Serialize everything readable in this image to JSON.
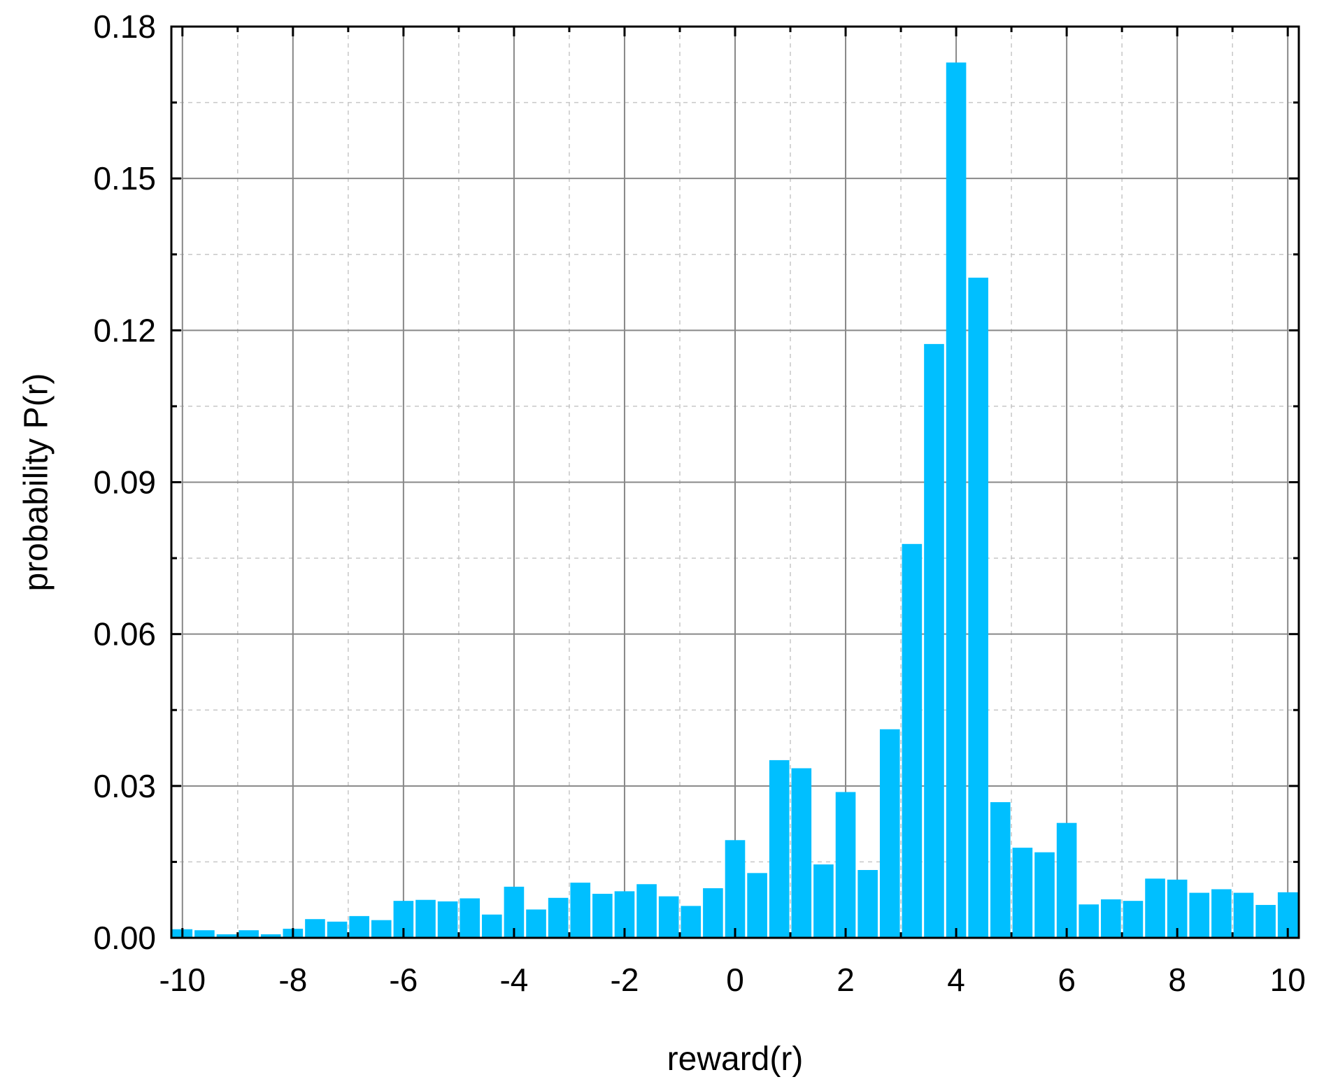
{
  "chart_data": {
    "type": "bar",
    "title": "",
    "xlabel": "reward(r)",
    "ylabel": "probability P(r)",
    "xlim": [
      -10.2,
      10.2
    ],
    "ylim": [
      0,
      0.18
    ],
    "grid": true,
    "bar_color": "#00BFFF",
    "bar_width": 0.4,
    "x_ticks": [
      -10,
      -8,
      -6,
      -4,
      -2,
      0,
      2,
      4,
      6,
      8,
      10
    ],
    "x_tick_labels": [
      "-10",
      "-8",
      "-6",
      "-4",
      "-2",
      "0",
      "2",
      "4",
      "6",
      "8",
      "10"
    ],
    "y_ticks": [
      0,
      0.03,
      0.06,
      0.09,
      0.12,
      0.15,
      0.18
    ],
    "y_tick_labels": [
      "0.00",
      "0.03",
      "0.06",
      "0.09",
      "0.12",
      "0.15",
      "0.18"
    ],
    "x": [
      -10,
      -9.6,
      -9.2,
      -8.8,
      -8.4,
      -8,
      -7.6,
      -7.2,
      -6.8,
      -6.4,
      -6,
      -5.6,
      -5.2,
      -4.8,
      -4.4,
      -4,
      -3.6,
      -3.2,
      -2.8,
      -2.4,
      -2,
      -1.6,
      -1.2,
      -0.8,
      -0.4,
      0,
      0.4,
      0.8,
      1.2,
      1.6,
      2,
      2.4,
      2.8,
      3.2,
      3.6,
      4,
      4.4,
      4.8,
      5.2,
      5.6,
      6,
      6.4,
      6.8,
      7.2,
      7.6,
      8,
      8.4,
      8.8,
      9.2,
      9.6,
      10
    ],
    "values": [
      0.0017,
      0.0015,
      0.0007,
      0.0015,
      0.0007,
      0.0018,
      0.0037,
      0.0032,
      0.0043,
      0.0035,
      0.0073,
      0.0075,
      0.0072,
      0.0078,
      0.0046,
      0.0101,
      0.0056,
      0.0079,
      0.0109,
      0.0087,
      0.0092,
      0.0106,
      0.0082,
      0.0063,
      0.0098,
      0.0193,
      0.0128,
      0.0351,
      0.0335,
      0.0145,
      0.0288,
      0.0134,
      0.0412,
      0.0778,
      0.1173,
      0.1729,
      0.1304,
      0.0268,
      0.0178,
      0.0169,
      0.0227,
      0.0066,
      0.0076,
      0.0073,
      0.0117,
      0.0115,
      0.0089,
      0.0096,
      0.0089,
      0.0065,
      0.009
    ]
  }
}
